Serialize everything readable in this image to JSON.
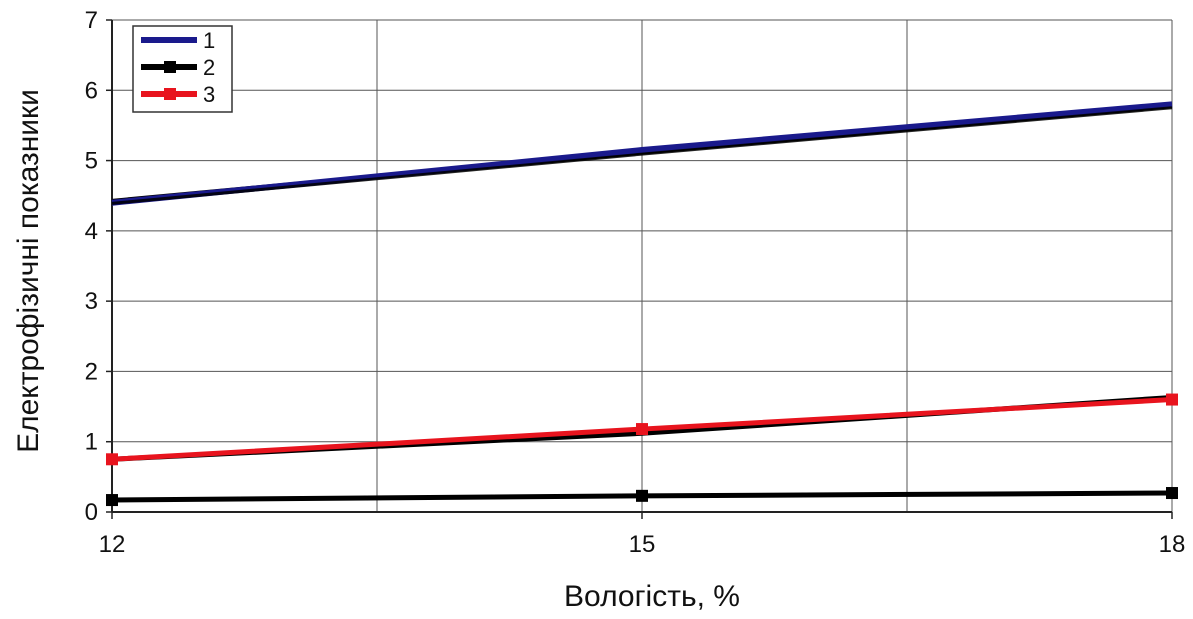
{
  "chart_data": {
    "type": "line",
    "title": "",
    "xlabel": "Вологість, %",
    "ylabel": "Електрофізичні показники",
    "x": [
      12,
      15,
      18
    ],
    "x_ticks": [
      "12",
      "15",
      "18"
    ],
    "y_ticks": [
      "0",
      "1",
      "2",
      "3",
      "4",
      "5",
      "6",
      "7"
    ],
    "xlim": [
      12,
      18
    ],
    "ylim": [
      0,
      7
    ],
    "grid": true,
    "legend_position": "top-left",
    "series": [
      {
        "name": "1",
        "values": [
          4.4,
          5.15,
          5.8
        ],
        "color": "#1a1a8c",
        "marker": "none"
      },
      {
        "name": "2",
        "values": [
          0.17,
          0.23,
          0.27
        ],
        "color": "#000000",
        "marker": "square"
      },
      {
        "name": "3",
        "values": [
          0.75,
          1.18,
          1.6
        ],
        "color": "#e8141e",
        "marker": "square"
      }
    ],
    "extra_lines": [
      {
        "values": [
          4.42,
          5.12,
          5.78
        ],
        "color": "#000000"
      },
      {
        "values": [
          0.75,
          1.12,
          1.63
        ],
        "color": "#000000"
      }
    ]
  }
}
